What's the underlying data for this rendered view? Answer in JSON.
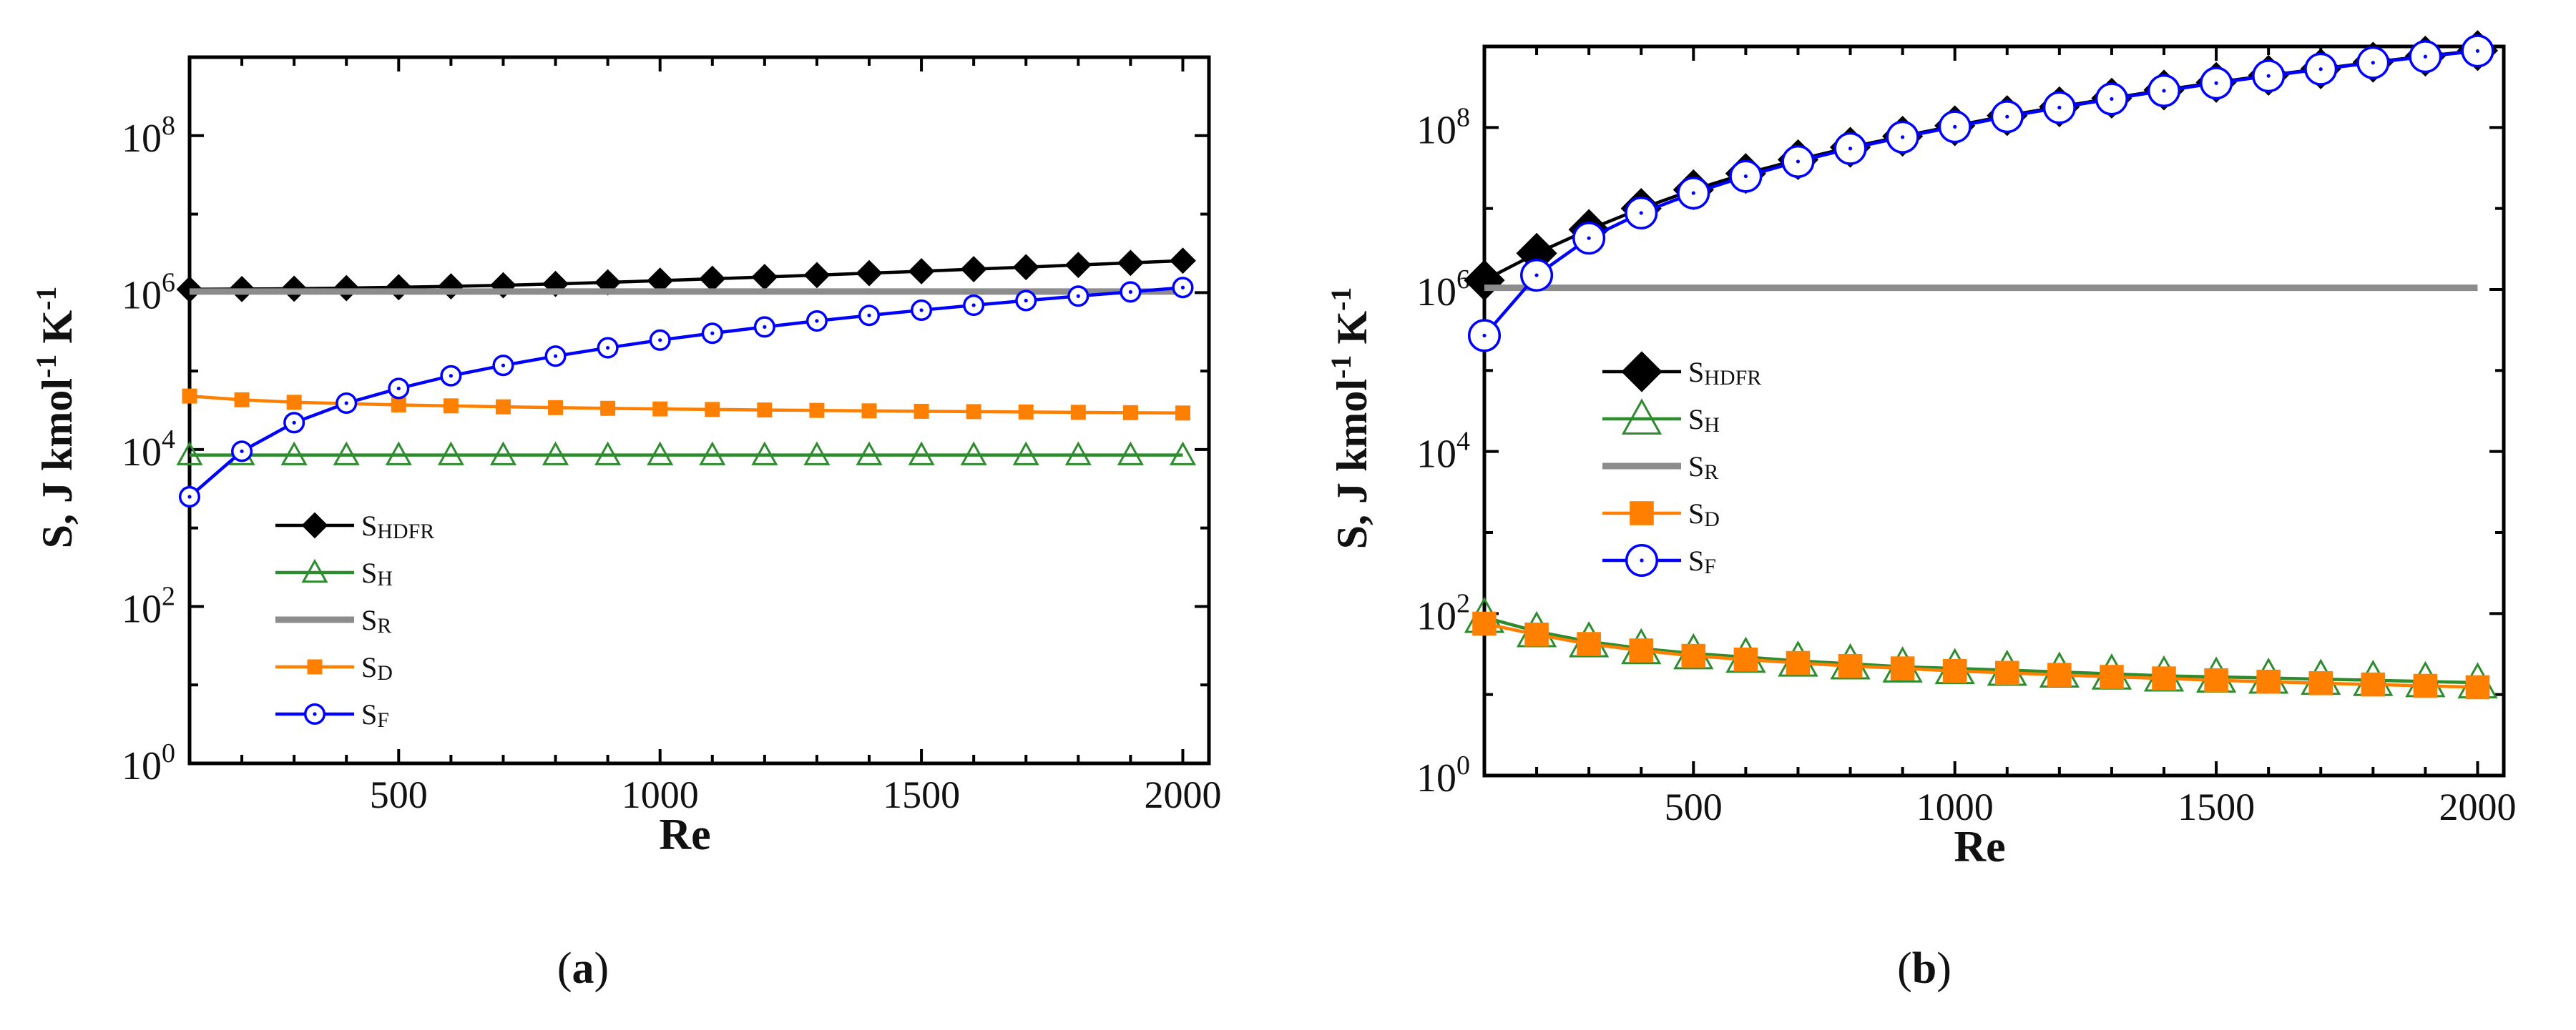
{
  "chart_data": [
    {
      "panel_label": "a",
      "type": "line",
      "yscale": "log",
      "xlabel": "Re",
      "ylabel": "S, J kmol-1 K-1",
      "xlim": [
        100,
        2050
      ],
      "ylim": [
        1,
        1000000000
      ],
      "xticks": [
        500,
        1000,
        1500,
        2000
      ],
      "xtick_labels": [
        "500",
        "1000",
        "1500",
        "2000"
      ],
      "yticks": [
        1,
        100,
        10000,
        1000000,
        100000000
      ],
      "ytick_labels": [
        {
          "base": "10",
          "exp": "0"
        },
        {
          "base": "10",
          "exp": "2"
        },
        {
          "base": "10",
          "exp": "4"
        },
        {
          "base": "10",
          "exp": "6"
        },
        {
          "base": "10",
          "exp": "8"
        }
      ],
      "legend_position": "lower-left",
      "x": [
        100,
        200,
        300,
        400,
        500,
        600,
        700,
        800,
        900,
        1000,
        1100,
        1200,
        1300,
        1400,
        1500,
        1600,
        1700,
        1800,
        1900,
        2000
      ],
      "series": [
        {
          "name": "SHDFR",
          "color": "#000000",
          "marker": "diamond",
          "values": [
            1100000,
            1110000,
            1120000,
            1140000,
            1170000,
            1200000,
            1240000,
            1290000,
            1350000,
            1420000,
            1500000,
            1580000,
            1670000,
            1770000,
            1870000,
            1990000,
            2110000,
            2250000,
            2390000,
            2550000
          ]
        },
        {
          "name": "SH",
          "color": "#2e8b2e",
          "marker": "triangle-open",
          "values": [
            8500,
            8500,
            8500,
            8500,
            8500,
            8500,
            8500,
            8500,
            8500,
            8500,
            8500,
            8500,
            8500,
            8500,
            8500,
            8500,
            8500,
            8500,
            8500,
            8500
          ]
        },
        {
          "name": "SR",
          "color": "#8c8c8c",
          "marker": "none",
          "values": [
            1030000,
            1030000,
            1030000,
            1030000,
            1030000,
            1030000,
            1030000,
            1030000,
            1030000,
            1030000,
            1030000,
            1030000,
            1030000,
            1030000,
            1030000,
            1030000,
            1030000,
            1030000,
            1030000,
            1030000
          ]
        },
        {
          "name": "SD",
          "color": "#ff8000",
          "marker": "square",
          "values": [
            48000,
            43000,
            40000,
            38500,
            37000,
            36000,
            35000,
            34200,
            33500,
            32900,
            32400,
            31900,
            31500,
            31100,
            30700,
            30400,
            30100,
            29800,
            29500,
            29200
          ]
        },
        {
          "name": "SF",
          "color": "#0000ff",
          "marker": "circle-dot-open",
          "values": [
            2500,
            9500,
            22000,
            39000,
            60000,
            87000,
            118000,
            155000,
            198000,
            248000,
            303000,
            365000,
            435000,
            512000,
            597000,
            690000,
            791000,
            902000,
            1020000,
            1160000
          ]
        }
      ],
      "caption": "(a)"
    },
    {
      "panel_label": "b",
      "type": "line",
      "yscale": "log",
      "xlabel": "Re",
      "ylabel": "S, J kmol-1 K-1",
      "xlim": [
        100,
        2050
      ],
      "ylim": [
        1,
        1000000000
      ],
      "xticks": [
        500,
        1000,
        1500,
        2000
      ],
      "xtick_labels": [
        "500",
        "1000",
        "1500",
        "2000"
      ],
      "yticks": [
        1,
        100,
        10000,
        1000000,
        100000000
      ],
      "ytick_labels": [
        {
          "base": "10",
          "exp": "0"
        },
        {
          "base": "10",
          "exp": "2"
        },
        {
          "base": "10",
          "exp": "4"
        },
        {
          "base": "10",
          "exp": "6"
        },
        {
          "base": "10",
          "exp": "8"
        }
      ],
      "legend_position": "center-left",
      "x": [
        100,
        200,
        300,
        400,
        500,
        600,
        700,
        800,
        900,
        1000,
        1100,
        1200,
        1300,
        1400,
        1500,
        1600,
        1700,
        1800,
        1900,
        2000
      ],
      "series": [
        {
          "name": "SHDFR",
          "color": "#000000",
          "marker": "diamond",
          "values": [
            1300000,
            2800000,
            5500000,
            10000000,
            17000000,
            27000000,
            40000000,
            57000000,
            78000000,
            105000000,
            140000000,
            180000000,
            230000000,
            290000000,
            360000000,
            440000000,
            530000000,
            640000000,
            760000000,
            890000000
          ]
        },
        {
          "name": "SH",
          "color": "#2e8b2e",
          "marker": "triangle-open",
          "values": [
            90,
            60,
            45,
            37,
            32,
            29,
            26,
            24,
            22,
            21,
            20,
            19,
            18,
            17,
            16.5,
            16,
            15.5,
            15,
            14.5,
            14
          ]
        },
        {
          "name": "SR",
          "color": "#8c8c8c",
          "marker": "none",
          "values": [
            1050000,
            1050000,
            1050000,
            1050000,
            1050000,
            1050000,
            1050000,
            1050000,
            1050000,
            1050000,
            1050000,
            1050000,
            1050000,
            1050000,
            1050000,
            1050000,
            1050000,
            1050000,
            1050000,
            1050000
          ]
        },
        {
          "name": "SD",
          "color": "#ff8000",
          "marker": "square",
          "values": [
            75,
            55,
            42,
            35,
            30,
            27,
            24.5,
            22.5,
            21,
            19.5,
            18.5,
            17.5,
            16.5,
            15.8,
            15,
            14.4,
            13.8,
            13.3,
            12.8,
            12.3
          ]
        },
        {
          "name": "SF",
          "color": "#0000ff",
          "marker": "circle-dot-open",
          "values": [
            270000,
            1500000,
            4300000,
            8800000,
            15500000,
            25000000,
            38000000,
            55000000,
            76000000,
            102000000,
            136000000,
            176000000,
            225000000,
            284000000,
            353000000,
            433000000,
            525000000,
            630000000,
            750000000,
            880000000
          ]
        }
      ],
      "caption": "(b)"
    }
  ]
}
